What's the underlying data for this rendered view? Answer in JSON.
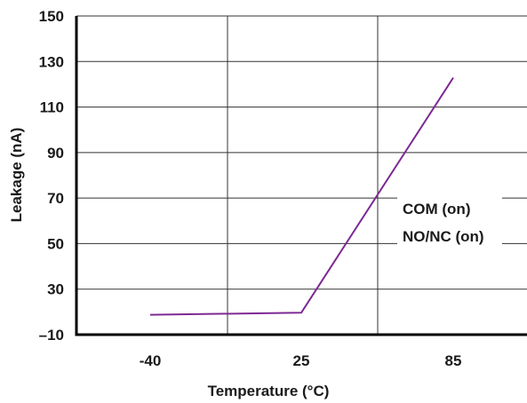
{
  "chart_data": {
    "type": "line",
    "title": "",
    "xlabel": "Temperature (°C)",
    "ylabel": "Leakage (nA)",
    "categories": [
      "-40",
      "25",
      "85"
    ],
    "y_tick_labels": [
      "–10",
      "30",
      "50",
      "70",
      "90",
      "110",
      "130",
      "150"
    ],
    "ylim": [
      -10,
      150
    ],
    "grid": true,
    "legend_position": "right-middle",
    "series": [
      {
        "name": "COM (on)",
        "points": [
          {
            "x": -40,
            "y": 0
          },
          {
            "x": 25,
            "y": 1
          },
          {
            "x": 85,
            "y": 119
          }
        ],
        "color": "#8b2a8e"
      },
      {
        "name": "NO/NC (on)",
        "points": [
          {
            "x": -40,
            "y": 0
          },
          {
            "x": 25,
            "y": 1
          },
          {
            "x": 85,
            "y": 119
          }
        ],
        "color": "#6a2aa0"
      }
    ]
  }
}
